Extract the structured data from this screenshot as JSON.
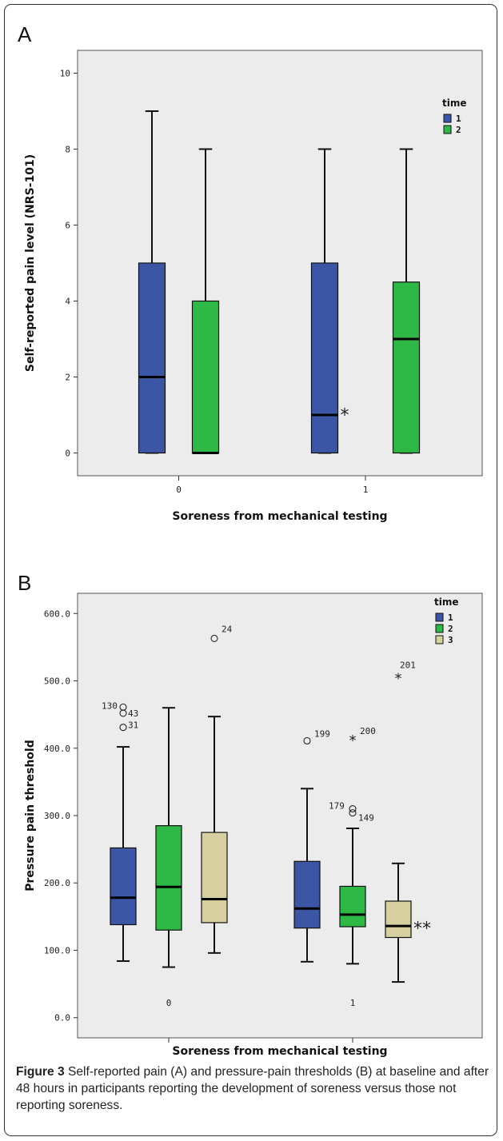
{
  "colors": {
    "time1": "#3c56a6",
    "time2": "#2eb845",
    "time3": "#d6d0a0",
    "plot_bg": "#ececec"
  },
  "chart_data": [
    {
      "type": "boxplot",
      "panel_label": "A",
      "ylabel": "Self-reported pain level (NRS-101)",
      "xlabel": "Soreness from mechanical testing",
      "ylim": [
        -0.6,
        10.6
      ],
      "yticks": [
        "0",
        "2",
        "4",
        "6",
        "8",
        "10"
      ],
      "categories": [
        "0",
        "1"
      ],
      "legend": {
        "title": "time",
        "entries": [
          "1",
          "2"
        ],
        "placement": "right"
      },
      "boxes": [
        {
          "group": "0",
          "time": 1,
          "min": 0,
          "q1": 0,
          "median": 2,
          "q3": 5,
          "max": 9
        },
        {
          "group": "0",
          "time": 2,
          "min": 0,
          "q1": 0,
          "median": 0,
          "q3": 4,
          "max": 8
        },
        {
          "group": "1",
          "time": 1,
          "min": 0,
          "q1": 0,
          "median": 1,
          "q3": 5,
          "max": 8
        },
        {
          "group": "1",
          "time": 2,
          "min": 0,
          "q1": 0,
          "median": 3,
          "q3": 4.5,
          "max": 8
        }
      ],
      "annotations": [
        {
          "text": "*",
          "group": "1",
          "time": 1,
          "y": 1.1
        }
      ]
    },
    {
      "type": "boxplot",
      "panel_label": "B",
      "ylabel": "Pressure pain threshold",
      "xlabel": "Soreness from mechanical testing",
      "ylim": [
        -30,
        630
      ],
      "yticks": [
        "0.0",
        "100.0",
        "200.0",
        "300.0",
        "400.0",
        "500.0",
        "600.0"
      ],
      "categories": [
        "0",
        "1"
      ],
      "legend": {
        "title": "time",
        "entries": [
          "1",
          "2",
          "3"
        ],
        "placement": "right"
      },
      "boxes": [
        {
          "group": "0",
          "time": 1,
          "min": 84,
          "q1": 138,
          "median": 178,
          "q3": 252,
          "max": 402
        },
        {
          "group": "0",
          "time": 2,
          "min": 75,
          "q1": 130,
          "median": 194,
          "q3": 285,
          "max": 460
        },
        {
          "group": "0",
          "time": 3,
          "min": 96,
          "q1": 141,
          "median": 176,
          "q3": 275,
          "max": 447
        },
        {
          "group": "1",
          "time": 1,
          "min": 83,
          "q1": 133,
          "median": 162,
          "q3": 232,
          "max": 340
        },
        {
          "group": "1",
          "time": 2,
          "min": 80,
          "q1": 135,
          "median": 153,
          "q3": 195,
          "max": 281
        },
        {
          "group": "1",
          "time": 3,
          "min": 53,
          "q1": 119,
          "median": 136,
          "q3": 173,
          "max": 229
        }
      ],
      "outliers": [
        {
          "group": "0",
          "time": 1,
          "y": 461,
          "marker": "circle",
          "label": "130"
        },
        {
          "group": "0",
          "time": 1,
          "y": 452,
          "marker": "circle",
          "label": "43"
        },
        {
          "group": "0",
          "time": 1,
          "y": 431,
          "marker": "circle",
          "label": "31"
        },
        {
          "group": "0",
          "time": 3,
          "y": 563,
          "marker": "circle",
          "label": "24"
        },
        {
          "group": "1",
          "time": 1,
          "y": 411,
          "marker": "circle",
          "label": "199"
        },
        {
          "group": "1",
          "time": 2,
          "y": 413,
          "marker": "star",
          "label": "200"
        },
        {
          "group": "1",
          "time": 2,
          "y": 310,
          "marker": "circle",
          "label": "179"
        },
        {
          "group": "1",
          "time": 2,
          "y": 304,
          "marker": "circle",
          "label": "149"
        },
        {
          "group": "1",
          "time": 3,
          "y": 505,
          "marker": "star",
          "label": "201"
        }
      ],
      "annotations": [
        {
          "text": "**",
          "group": "1",
          "time": 3,
          "y": 138
        }
      ]
    }
  ],
  "caption": {
    "bold": "Figure 3",
    "text": " Self-reported pain (A) and pressure-pain thresholds (B) at baseline and after 48 hours in participants reporting the development of soreness versus those not reporting soreness."
  }
}
